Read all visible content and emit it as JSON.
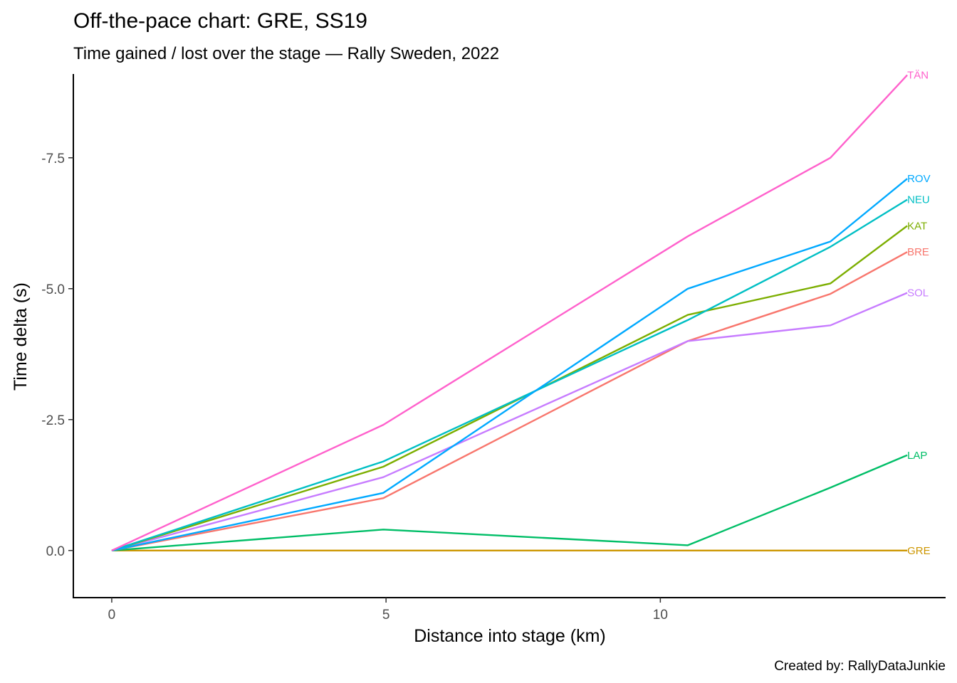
{
  "chart_data": {
    "type": "line",
    "title": "Off-the-pace chart: GRE, SS19",
    "subtitle": "Time gained / lost over the stage — Rally Sweden, 2022",
    "xlabel": "Distance into stage (km)",
    "ylabel": "Time delta (s)",
    "caption": "Created by: RallyDataJunkie",
    "xlim": [
      -0.7,
      15.2
    ],
    "ylim": [
      0.9,
      -9.1
    ],
    "x_ticks": [
      {
        "value": 0,
        "label": "0"
      },
      {
        "value": 5,
        "label": "5"
      },
      {
        "value": 10,
        "label": "10"
      }
    ],
    "y_ticks": [
      {
        "value": 0,
        "label": "0.0"
      },
      {
        "value": -2.5,
        "label": "-2.5"
      },
      {
        "value": -5,
        "label": "-5.0"
      },
      {
        "value": -7.5,
        "label": "-7.5"
      }
    ],
    "grid": false,
    "legend": "end-of-line labels",
    "series": [
      {
        "name": "GRE",
        "color": "#CD9600",
        "x": [
          0,
          4.95,
          10.5,
          13.1,
          14.5
        ],
        "y": [
          0,
          0,
          0,
          0,
          0
        ]
      },
      {
        "name": "LAP",
        "color": "#00BE67",
        "x": [
          0,
          4.95,
          10.5,
          13.1,
          14.5
        ],
        "y": [
          0,
          -0.4,
          -0.1,
          -1.2,
          -1.82
        ]
      },
      {
        "name": "BRE",
        "color": "#F8766D",
        "x": [
          0,
          4.95,
          10.5,
          13.1,
          14.5
        ],
        "y": [
          0,
          -1.0,
          -4.0,
          -4.9,
          -5.7
        ]
      },
      {
        "name": "SOL",
        "color": "#C77CFF",
        "x": [
          0,
          4.95,
          10.5,
          13.1,
          14.5
        ],
        "y": [
          0,
          -1.4,
          -4.0,
          -4.3,
          -4.92
        ]
      },
      {
        "name": "KAT",
        "color": "#7CAE00",
        "x": [
          0,
          4.95,
          10.5,
          13.1,
          14.5
        ],
        "y": [
          0,
          -1.6,
          -4.5,
          -5.1,
          -6.2
        ]
      },
      {
        "name": "NEU",
        "color": "#00BFC4",
        "x": [
          0,
          4.95,
          10.5,
          13.1,
          14.5
        ],
        "y": [
          0,
          -1.7,
          -4.4,
          -5.8,
          -6.7
        ]
      },
      {
        "name": "ROV",
        "color": "#00A9FF",
        "x": [
          0,
          4.95,
          10.5,
          13.1,
          14.5
        ],
        "y": [
          0,
          -1.1,
          -5.0,
          -5.9,
          -7.1
        ]
      },
      {
        "name": "TÄN",
        "color": "#FF61CC",
        "x": [
          0,
          4.95,
          10.5,
          13.1,
          14.5
        ],
        "y": [
          0,
          -2.4,
          -6.0,
          -7.5,
          -9.08
        ]
      }
    ]
  }
}
